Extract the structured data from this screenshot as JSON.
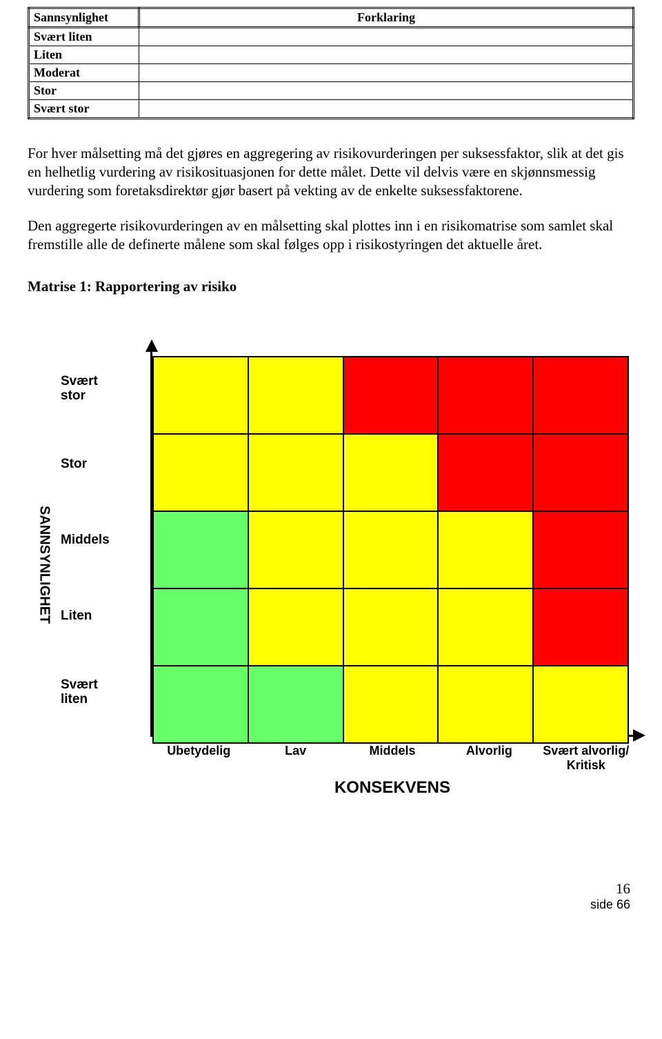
{
  "top_table": {
    "headers": [
      "Sannsynlighet",
      "Forklaring"
    ],
    "rows": [
      [
        "Svært liten",
        ""
      ],
      [
        "Liten",
        ""
      ],
      [
        "Moderat",
        ""
      ],
      [
        "Stor",
        ""
      ],
      [
        "Svært stor",
        ""
      ]
    ]
  },
  "paragraph1": "For hver målsetting må det gjøres en aggregering av risikovurderingen per suksessfaktor, slik at det gis en helhetlig vurdering av risikosituasjonen for dette målet. Dette vil delvis være en skjønnsmessig vurdering som foretaksdirektør gjør basert på vekting av de enkelte suksessfaktorene.",
  "paragraph2": "Den aggregerte risikovurderingen av en målsetting skal plottes inn i en risikomatrise som samlet skal fremstille alle de definerte målene som skal følges opp i risikostyringen det aktuelle året.",
  "subheading": "Matrise 1: Rapportering av risiko",
  "matrix": {
    "y_axis_title": "SANNSYNLIGHET",
    "x_axis_title": "KONSEKVENS",
    "y_labels": [
      "Svært stor",
      "Stor",
      "Middels",
      "Liten",
      "Svært liten"
    ],
    "x_labels": [
      "Ubetydelig",
      "Lav",
      "Middels",
      "Alvorlig",
      "Svært alvorlig/ Kritisk"
    ],
    "colors": {
      "green": "#66ff66",
      "yellow": "#ffff00",
      "red": "#ff0000",
      "grid_line": "#000000",
      "background": "#ffffff"
    },
    "cells": [
      [
        "yellow",
        "yellow",
        "red",
        "red",
        "red"
      ],
      [
        "yellow",
        "yellow",
        "yellow",
        "red",
        "red"
      ],
      [
        "green",
        "yellow",
        "yellow",
        "yellow",
        "red"
      ],
      [
        "green",
        "yellow",
        "yellow",
        "yellow",
        "red"
      ],
      [
        "green",
        "green",
        "yellow",
        "yellow",
        "yellow"
      ]
    ]
  },
  "page_number": "16",
  "side_label": "side 66"
}
